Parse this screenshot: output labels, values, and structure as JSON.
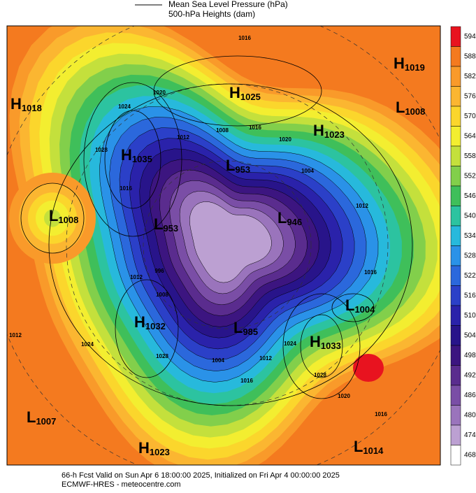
{
  "header": {
    "legend_line": "Mean Sea Level Pressure (hPa)",
    "legend_fill": "500-hPa Heights (dam)"
  },
  "colorbar": {
    "ticks": [
      594,
      588,
      582,
      576,
      570,
      564,
      558,
      552,
      546,
      540,
      534,
      528,
      522,
      516,
      510,
      504,
      498,
      492,
      486,
      480,
      474,
      468
    ],
    "colors": [
      "#e8131f",
      "#f47a1f",
      "#f99a2a",
      "#fbb631",
      "#fbd62c",
      "#f3ee30",
      "#c4e03c",
      "#82cf4b",
      "#3fbf5a",
      "#2cc3a0",
      "#27b9dc",
      "#2a92e8",
      "#2b68dc",
      "#2b40c8",
      "#2a22aa",
      "#28148a",
      "#3c1580",
      "#5a2c8e",
      "#7a4ea6",
      "#9a74bc",
      "#bca0d2",
      "#ffffff"
    ]
  },
  "centers": [
    {
      "letter": "H",
      "value": "1019"
    },
    {
      "letter": "H",
      "value": "1025"
    },
    {
      "letter": "L",
      "value": "1008"
    },
    {
      "letter": "H",
      "value": "1018"
    },
    {
      "letter": "H",
      "value": "1023"
    },
    {
      "letter": "H",
      "value": "1035"
    },
    {
      "letter": "L",
      "value": "953"
    },
    {
      "letter": "L",
      "value": "1008"
    },
    {
      "letter": "L",
      "value": "953"
    },
    {
      "letter": "L",
      "value": "946"
    },
    {
      "letter": "H",
      "value": "1032"
    },
    {
      "letter": "L",
      "value": "1004"
    },
    {
      "letter": "L",
      "value": "985"
    },
    {
      "letter": "H",
      "value": "1033"
    },
    {
      "letter": "L",
      "value": "1007"
    },
    {
      "letter": "H",
      "value": "1023"
    },
    {
      "letter": "L",
      "value": "1014"
    }
  ],
  "contour_labels": [
    "1016",
    "1020",
    "1024",
    "1028",
    "1016",
    "1012",
    "1008",
    "1016",
    "1020",
    "1004",
    "1012",
    "1016",
    "1020",
    "1016",
    "1028",
    "1024",
    "1016",
    "1004",
    "1012",
    "1008",
    "1012",
    "996",
    "1024",
    "1012",
    "1028"
  ],
  "footer": {
    "line1": "66-h Fcst Valid on Sun Apr  6 18:00:00 2025, Initialized on Fri Apr  4 00:00:00 2025",
    "line2": "ECMWF-HRES - meteocentre.com"
  }
}
